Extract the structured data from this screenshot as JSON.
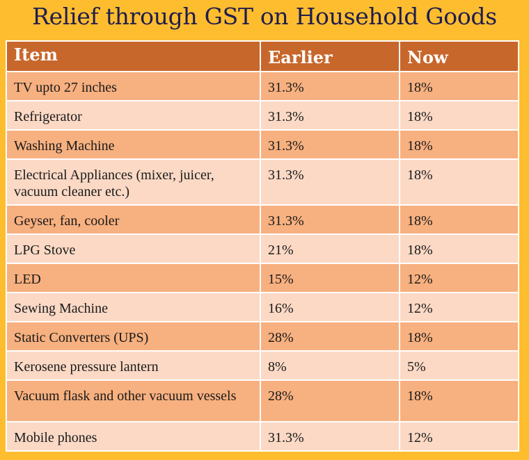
{
  "title": "Relief through GST on Household Goods",
  "table": {
    "headers": {
      "item": "Item",
      "earlier": "Earlier",
      "now": "Now"
    },
    "rows": [
      {
        "item": "TV upto 27 inches",
        "earlier": "31.3%",
        "now": "18%"
      },
      {
        "item": "Refrigerator",
        "earlier": "31.3%",
        "now": "18%"
      },
      {
        "item": "Washing Machine",
        "earlier": "31.3%",
        "now": "18%"
      },
      {
        "item": "Electrical Appliances (mixer, juicer, vacuum cleaner etc.)",
        "earlier": "31.3%",
        "now": "18%"
      },
      {
        "item": "Geyser, fan, cooler",
        "earlier": "31.3%",
        "now": "18%"
      },
      {
        "item": "LPG Stove",
        "earlier": "21%",
        "now": "18%"
      },
      {
        "item": "LED",
        "earlier": "15%",
        "now": "12%"
      },
      {
        "item": "Sewing Machine",
        "earlier": "16%",
        "now": "12%"
      },
      {
        "item": "Static Converters (UPS)",
        "earlier": "28%",
        "now": "18%"
      },
      {
        "item": "Kerosene pressure lantern",
        "earlier": "8%",
        "now": "5%"
      },
      {
        "item": "Vacuum flask and other vacuum vessels",
        "earlier": "28%",
        "now": "18%"
      },
      {
        "item": "Mobile phones",
        "earlier": "31.3%",
        "now": "12%"
      }
    ]
  },
  "colors": {
    "background": "#fdbd2f",
    "title": "#1f1d4d",
    "header": "#c8672c",
    "row_dark": "#f7b07f",
    "row_light": "#fbd9c5"
  }
}
